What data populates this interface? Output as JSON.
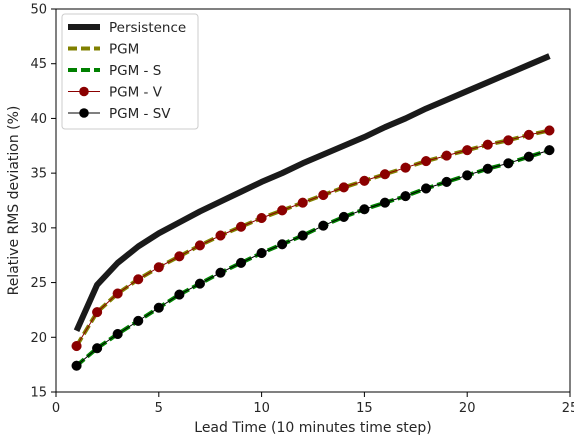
{
  "chart_data": {
    "type": "line",
    "title": "",
    "xlabel": "Lead Time (10 minutes time step)",
    "ylabel": "Relative RMS deviation (%)",
    "xlim": [
      0,
      25
    ],
    "ylim": [
      15,
      50
    ],
    "xticks": [
      0,
      5,
      10,
      15,
      20,
      25
    ],
    "yticks": [
      15,
      20,
      25,
      30,
      35,
      40,
      45,
      50
    ],
    "grid": false,
    "legend_position": "upper-left",
    "x": [
      1,
      2,
      3,
      4,
      5,
      6,
      7,
      8,
      9,
      10,
      11,
      12,
      13,
      14,
      15,
      16,
      17,
      18,
      19,
      20,
      21,
      22,
      23,
      24
    ],
    "series": [
      {
        "name": "Persistence",
        "color": "#1a1a1a",
        "style": "thick-solid",
        "values": [
          20.6,
          24.8,
          26.8,
          28.3,
          29.5,
          30.5,
          31.5,
          32.4,
          33.3,
          34.2,
          35.0,
          35.9,
          36.7,
          37.5,
          38.3,
          39.2,
          40.0,
          40.9,
          41.7,
          42.5,
          43.3,
          44.1,
          44.9,
          45.7
        ]
      },
      {
        "name": "PGM",
        "color": "#808000",
        "style": "dashed",
        "values": [
          19.2,
          22.3,
          24.0,
          25.3,
          26.4,
          27.4,
          28.4,
          29.3,
          30.1,
          30.9,
          31.6,
          32.3,
          33.0,
          33.7,
          34.3,
          34.9,
          35.5,
          36.1,
          36.6,
          37.1,
          37.6,
          38.0,
          38.5,
          38.9
        ]
      },
      {
        "name": "PGM - S",
        "color": "#008000",
        "style": "dashed",
        "values": [
          17.4,
          19.0,
          20.3,
          21.5,
          22.7,
          23.9,
          24.9,
          25.9,
          26.8,
          27.7,
          28.5,
          29.3,
          30.2,
          31.0,
          31.7,
          32.3,
          32.9,
          33.6,
          34.2,
          34.8,
          35.4,
          35.9,
          36.5,
          37.1
        ]
      },
      {
        "name": "PGM - V",
        "color": "#8b0000",
        "style": "marker-line",
        "values": [
          19.2,
          22.3,
          24.0,
          25.3,
          26.4,
          27.4,
          28.4,
          29.3,
          30.1,
          30.9,
          31.6,
          32.3,
          33.0,
          33.7,
          34.3,
          34.9,
          35.5,
          36.1,
          36.6,
          37.1,
          37.6,
          38.0,
          38.5,
          38.9
        ]
      },
      {
        "name": "PGM - SV",
        "color": "#000000",
        "style": "marker-line",
        "values": [
          17.4,
          19.0,
          20.3,
          21.5,
          22.7,
          23.9,
          24.9,
          25.9,
          26.8,
          27.7,
          28.5,
          29.3,
          30.2,
          31.0,
          31.7,
          32.3,
          32.9,
          33.6,
          34.2,
          34.8,
          35.4,
          35.9,
          36.5,
          37.1
        ]
      }
    ]
  }
}
